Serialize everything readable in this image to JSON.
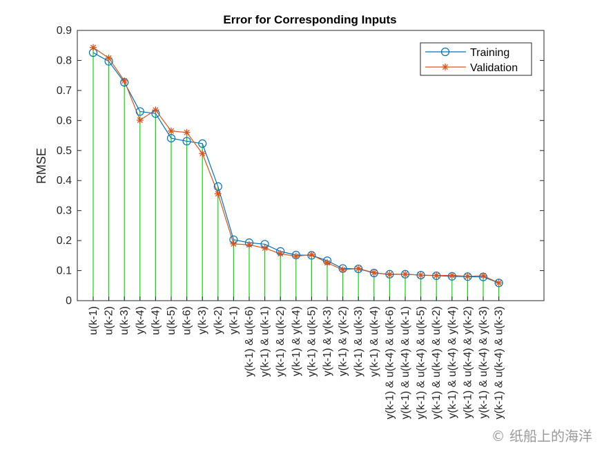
{
  "chart_data": {
    "type": "line",
    "title": "Error for Corresponding Inputs",
    "xlabel": "",
    "ylabel": "RMSE",
    "ylim": [
      0,
      0.9
    ],
    "yticks": [
      "0",
      "0.1",
      "0.2",
      "0.3",
      "0.4",
      "0.5",
      "0.6",
      "0.7",
      "0.8",
      "0.9"
    ],
    "grid": false,
    "legend_position": "top-right",
    "categories": [
      "u(k-1)",
      "u(k-2)",
      "u(k-3)",
      "y(k-4)",
      "u(k-4)",
      "u(k-5)",
      "u(k-6)",
      "y(k-3)",
      "y(k-2)",
      "y(k-1)",
      "y(k-1) & u(k-6)",
      "y(k-1) & u(k-1)",
      "y(k-1) & u(k-2)",
      "y(k-1) & y(k-4)",
      "y(k-1) & u(k-5)",
      "y(k-1) & y(k-3)",
      "y(k-1) & y(k-2)",
      "y(k-1) & u(k-3)",
      "y(k-1) & u(k-4)",
      "y(k-1) & u(k-4) & u(k-6)",
      "y(k-1) & u(k-4) & u(k-1)",
      "y(k-1) & u(k-4) & u(k-5)",
      "y(k-1) & u(k-4) & u(k-2)",
      "y(k-1) & u(k-4) & y(k-4)",
      "y(k-1) & u(k-4) & y(k-2)",
      "y(k-1) & u(k-4) & y(k-3)",
      "y(k-1) & u(k-4) & u(k-3)"
    ],
    "series": [
      {
        "name": "Training",
        "color": "#0072BD",
        "marker": "circle",
        "values": [
          0.826,
          0.797,
          0.727,
          0.63,
          0.623,
          0.541,
          0.531,
          0.523,
          0.38,
          0.203,
          0.193,
          0.188,
          0.164,
          0.152,
          0.151,
          0.133,
          0.107,
          0.106,
          0.092,
          0.088,
          0.088,
          0.085,
          0.083,
          0.081,
          0.08,
          0.079,
          0.059
        ]
      },
      {
        "name": "Validation",
        "color": "#D95319",
        "marker": "asterisk",
        "values": [
          0.843,
          0.808,
          0.732,
          0.601,
          0.635,
          0.565,
          0.56,
          0.49,
          0.356,
          0.189,
          0.186,
          0.175,
          0.156,
          0.148,
          0.153,
          0.126,
          0.103,
          0.107,
          0.093,
          0.087,
          0.088,
          0.085,
          0.084,
          0.084,
          0.081,
          0.083,
          0.059
        ]
      }
    ],
    "stem_color": "#00E000"
  },
  "watermark": "© 纸船上的海洋"
}
